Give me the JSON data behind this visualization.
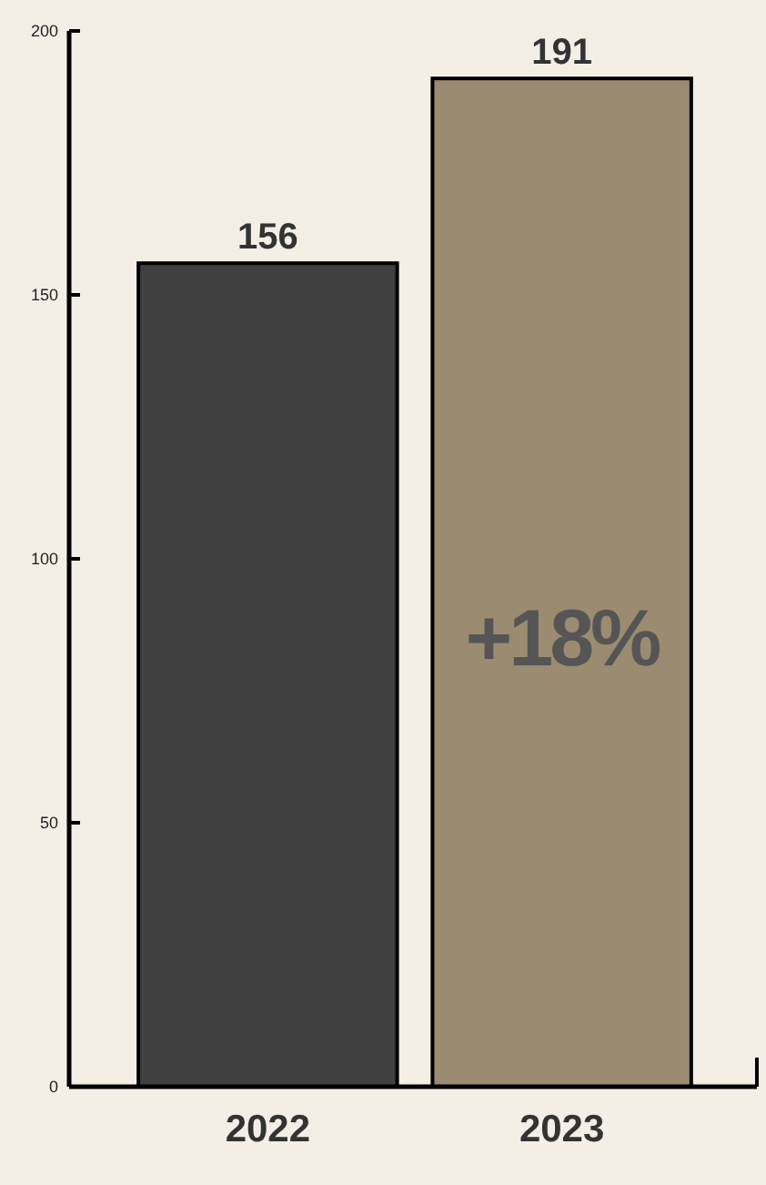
{
  "chart_data": {
    "type": "bar",
    "categories": [
      "2022",
      "2023"
    ],
    "values": [
      156,
      191
    ],
    "colors": [
      "#404040",
      "#9b8b70"
    ],
    "ylim": [
      0,
      200
    ],
    "yticks": [
      0,
      50,
      100,
      150,
      200
    ],
    "data_labels": true,
    "grid": false,
    "annotations": [
      "+18%"
    ]
  }
}
